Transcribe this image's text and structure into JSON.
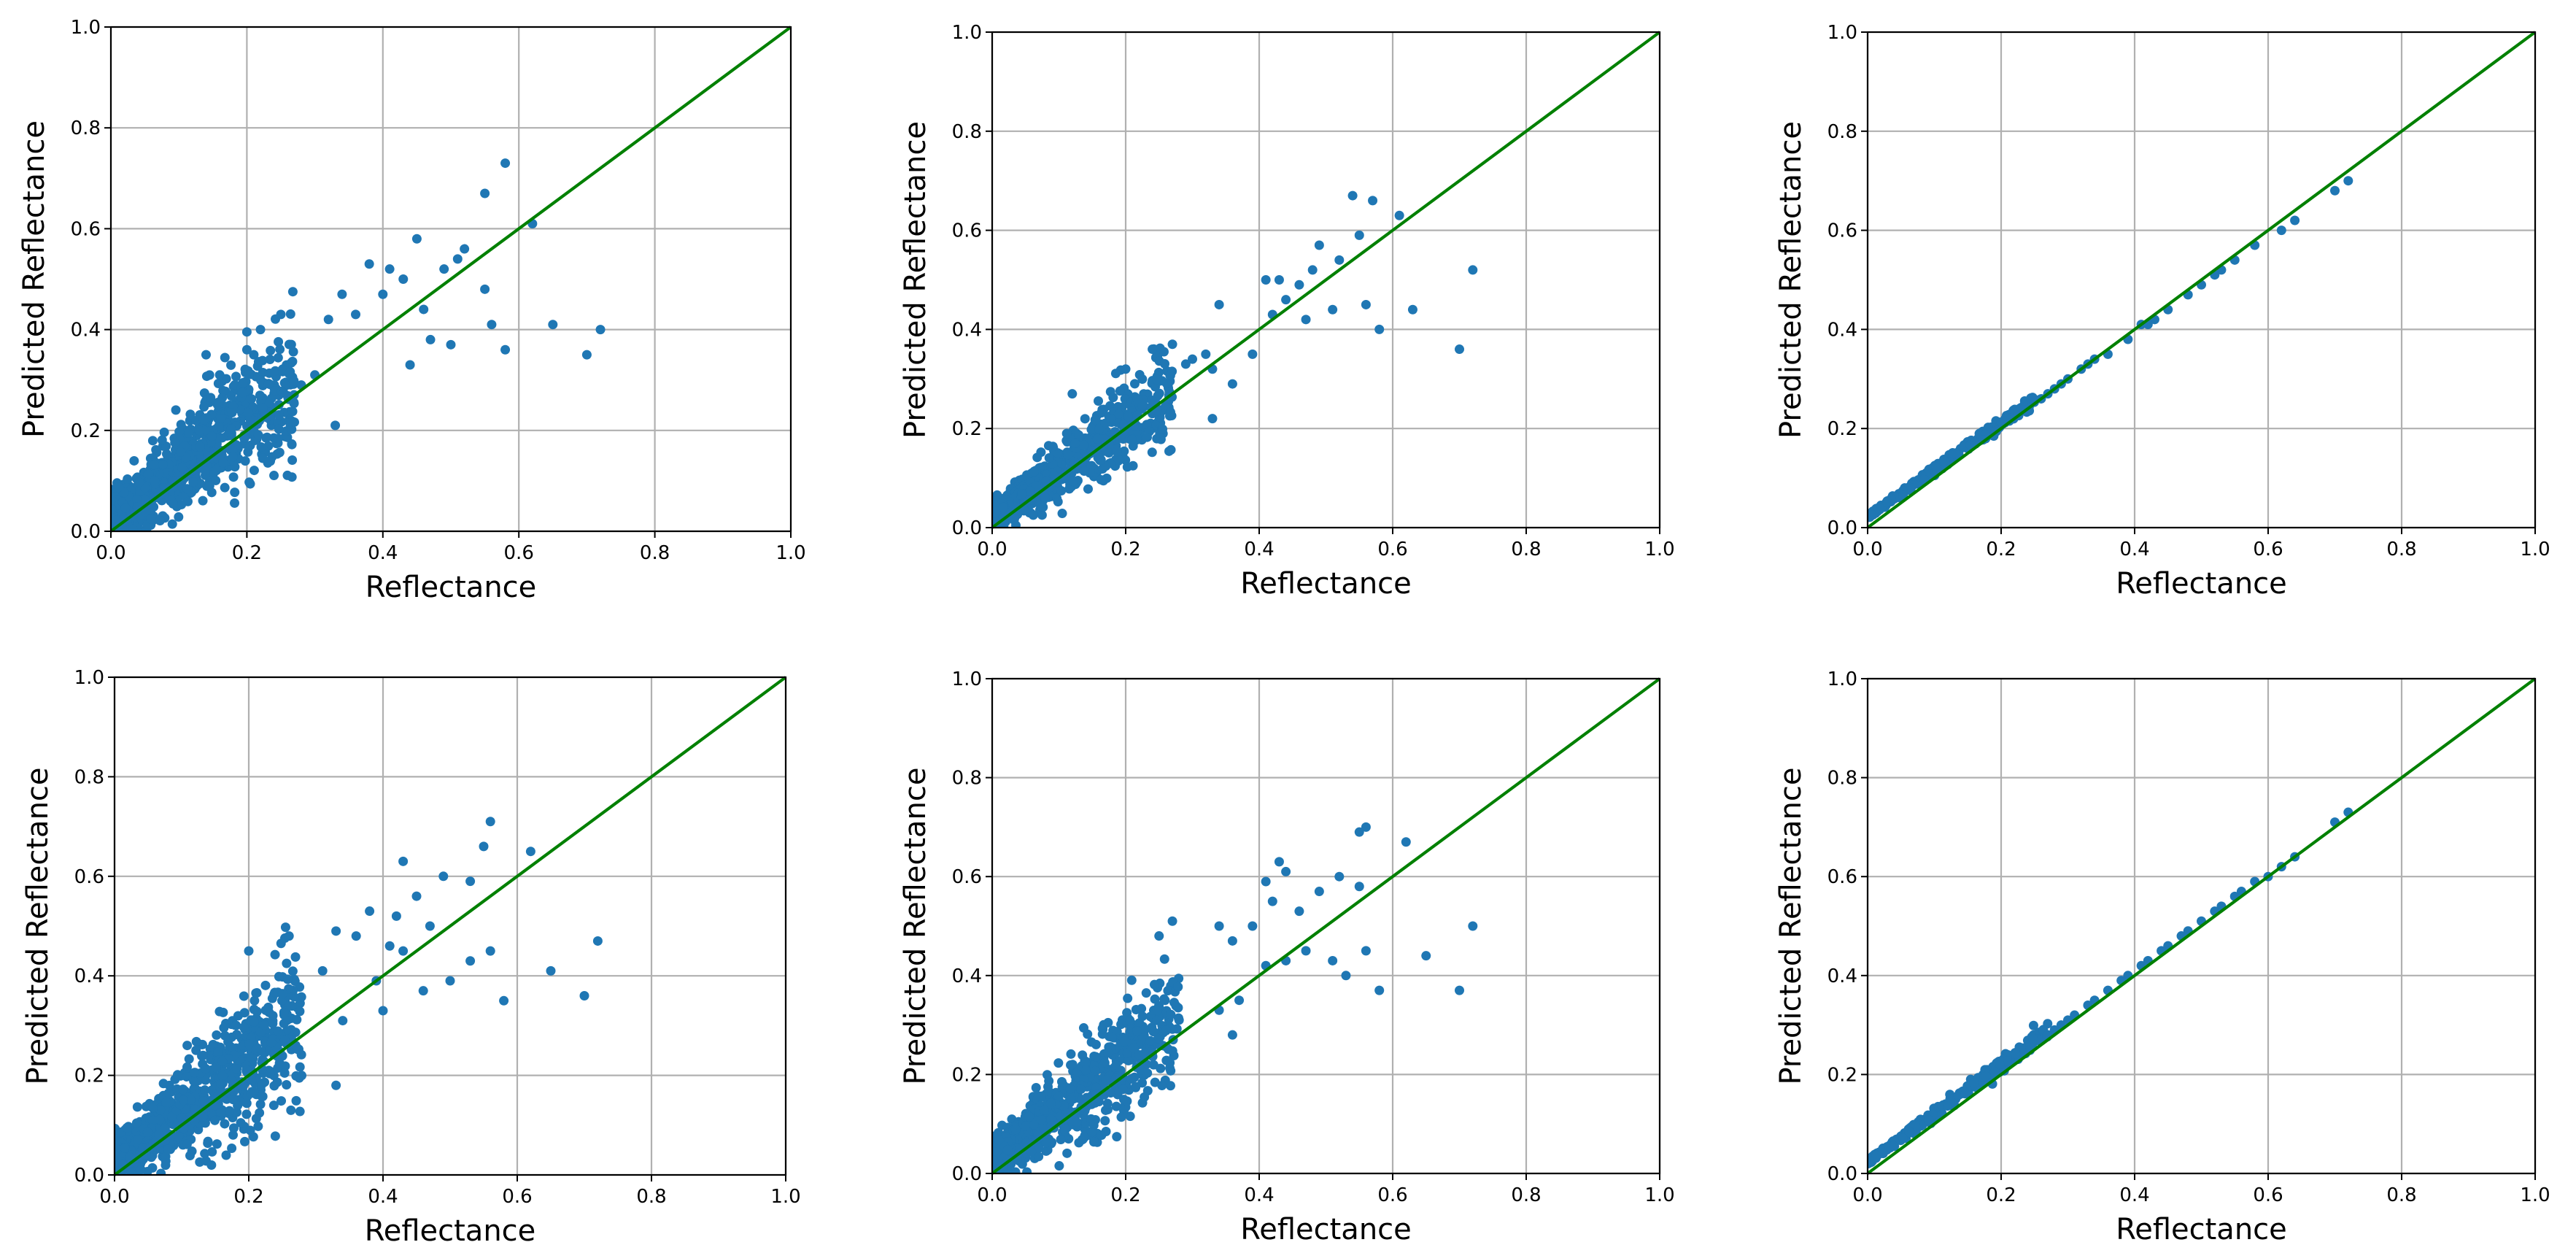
{
  "chart_data": [
    {
      "type": "scatter",
      "panel": "top-left",
      "xlabel": "Reflectance",
      "ylabel": "Predicted Reflectance",
      "xlim": [
        0.0,
        1.0
      ],
      "ylim": [
        0.0,
        1.0
      ],
      "xticks": [
        "0.0",
        "0.2",
        "0.4",
        "0.6",
        "0.8",
        "1.0"
      ],
      "yticks": [
        "0.0",
        "0.2",
        "0.4",
        "0.6",
        "0.8",
        "1.0"
      ],
      "grid": true,
      "reference_line": {
        "from": [
          0,
          0
        ],
        "to": [
          1,
          1
        ],
        "color": "#008000"
      },
      "marker_color": "#1f77b4",
      "cluster": {
        "x_range": [
          0.0,
          0.27
        ],
        "slope": 0.98,
        "intercept": 0.03,
        "spread": 0.045,
        "count": 900
      },
      "points": [
        [
          0.58,
          0.73
        ],
        [
          0.55,
          0.67
        ],
        [
          0.62,
          0.61
        ],
        [
          0.45,
          0.58
        ],
        [
          0.52,
          0.56
        ],
        [
          0.51,
          0.54
        ],
        [
          0.38,
          0.53
        ],
        [
          0.41,
          0.52
        ],
        [
          0.49,
          0.52
        ],
        [
          0.43,
          0.5
        ],
        [
          0.55,
          0.48
        ],
        [
          0.4,
          0.47
        ],
        [
          0.34,
          0.47
        ],
        [
          0.46,
          0.44
        ],
        [
          0.36,
          0.43
        ],
        [
          0.32,
          0.42
        ],
        [
          0.56,
          0.41
        ],
        [
          0.65,
          0.41
        ],
        [
          0.72,
          0.4
        ],
        [
          0.47,
          0.38
        ],
        [
          0.5,
          0.37
        ],
        [
          0.58,
          0.36
        ],
        [
          0.7,
          0.35
        ],
        [
          0.44,
          0.33
        ],
        [
          0.33,
          0.21
        ],
        [
          0.3,
          0.31
        ],
        [
          0.28,
          0.29
        ],
        [
          0.2,
          0.36
        ],
        [
          0.22,
          0.4
        ],
        [
          0.25,
          0.43
        ],
        [
          0.14,
          0.35
        ],
        [
          0.16,
          0.31
        ]
      ]
    },
    {
      "type": "scatter",
      "panel": "top-middle",
      "xlabel": "Reflectance",
      "ylabel": "Predicted Reflectance",
      "xlim": [
        0.0,
        1.0
      ],
      "ylim": [
        0.0,
        1.0
      ],
      "xticks": [
        "0.0",
        "0.2",
        "0.4",
        "0.6",
        "0.8",
        "1.0"
      ],
      "yticks": [
        "0.0",
        "0.2",
        "0.4",
        "0.6",
        "0.8",
        "1.0"
      ],
      "grid": true,
      "reference_line": {
        "from": [
          0,
          0
        ],
        "to": [
          1,
          1
        ],
        "color": "#008000"
      },
      "marker_color": "#1f77b4",
      "cluster": {
        "x_range": [
          0.0,
          0.27
        ],
        "slope": 0.95,
        "intercept": 0.02,
        "spread": 0.028,
        "count": 800
      },
      "points": [
        [
          0.54,
          0.67
        ],
        [
          0.57,
          0.66
        ],
        [
          0.61,
          0.63
        ],
        [
          0.55,
          0.59
        ],
        [
          0.49,
          0.57
        ],
        [
          0.52,
          0.54
        ],
        [
          0.48,
          0.52
        ],
        [
          0.41,
          0.5
        ],
        [
          0.43,
          0.5
        ],
        [
          0.46,
          0.49
        ],
        [
          0.44,
          0.46
        ],
        [
          0.34,
          0.45
        ],
        [
          0.56,
          0.45
        ],
        [
          0.63,
          0.44
        ],
        [
          0.72,
          0.52
        ],
        [
          0.51,
          0.44
        ],
        [
          0.42,
          0.43
        ],
        [
          0.47,
          0.42
        ],
        [
          0.58,
          0.4
        ],
        [
          0.7,
          0.36
        ],
        [
          0.39,
          0.35
        ],
        [
          0.32,
          0.35
        ],
        [
          0.3,
          0.34
        ],
        [
          0.36,
          0.29
        ],
        [
          0.33,
          0.32
        ],
        [
          0.29,
          0.33
        ],
        [
          0.27,
          0.37
        ],
        [
          0.2,
          0.32
        ],
        [
          0.12,
          0.27
        ],
        [
          0.24,
          0.36
        ],
        [
          0.33,
          0.22
        ]
      ]
    },
    {
      "type": "scatter",
      "panel": "top-right",
      "xlabel": "Reflectance",
      "ylabel": "Predicted Reflectance",
      "xlim": [
        0.0,
        1.0
      ],
      "ylim": [
        0.0,
        1.0
      ],
      "xticks": [
        "0.0",
        "0.2",
        "0.4",
        "0.6",
        "0.8",
        "1.0"
      ],
      "yticks": [
        "0.0",
        "0.2",
        "0.4",
        "0.6",
        "0.8",
        "1.0"
      ],
      "grid": true,
      "reference_line": {
        "from": [
          0,
          0
        ],
        "to": [
          1,
          1
        ],
        "color": "#008000"
      },
      "marker_color": "#1f77b4",
      "cluster": {
        "x_range": [
          0.0,
          0.25
        ],
        "slope": 0.95,
        "intercept": 0.022,
        "spread": 0.004,
        "count": 300
      },
      "points": [
        [
          0.72,
          0.7
        ],
        [
          0.7,
          0.68
        ],
        [
          0.64,
          0.62
        ],
        [
          0.62,
          0.6
        ],
        [
          0.58,
          0.57
        ],
        [
          0.55,
          0.54
        ],
        [
          0.53,
          0.52
        ],
        [
          0.52,
          0.51
        ],
        [
          0.5,
          0.49
        ],
        [
          0.48,
          0.47
        ],
        [
          0.45,
          0.44
        ],
        [
          0.43,
          0.42
        ],
        [
          0.42,
          0.41
        ],
        [
          0.41,
          0.41
        ],
        [
          0.39,
          0.38
        ],
        [
          0.36,
          0.35
        ],
        [
          0.34,
          0.34
        ],
        [
          0.33,
          0.33
        ],
        [
          0.32,
          0.32
        ],
        [
          0.3,
          0.3
        ],
        [
          0.29,
          0.29
        ],
        [
          0.28,
          0.28
        ],
        [
          0.27,
          0.27
        ],
        [
          0.26,
          0.26
        ]
      ]
    },
    {
      "type": "scatter",
      "panel": "bottom-left",
      "xlabel": "Reflectance",
      "ylabel": "Predicted Reflectance",
      "xlim": [
        0.0,
        1.0
      ],
      "ylim": [
        0.0,
        1.0
      ],
      "xticks": [
        "0.0",
        "0.2",
        "0.4",
        "0.6",
        "0.8",
        "1.0"
      ],
      "yticks": [
        "0.0",
        "0.2",
        "0.4",
        "0.6",
        "0.8",
        "1.0"
      ],
      "grid": true,
      "reference_line": {
        "from": [
          0,
          0
        ],
        "to": [
          1,
          1
        ],
        "color": "#008000"
      },
      "marker_color": "#1f77b4",
      "cluster": {
        "x_range": [
          0.0,
          0.28
        ],
        "slope": 1.0,
        "intercept": 0.03,
        "spread": 0.045,
        "count": 900
      },
      "points": [
        [
          0.56,
          0.71
        ],
        [
          0.55,
          0.66
        ],
        [
          0.62,
          0.65
        ],
        [
          0.43,
          0.63
        ],
        [
          0.49,
          0.6
        ],
        [
          0.53,
          0.59
        ],
        [
          0.45,
          0.56
        ],
        [
          0.38,
          0.53
        ],
        [
          0.42,
          0.52
        ],
        [
          0.47,
          0.5
        ],
        [
          0.33,
          0.49
        ],
        [
          0.36,
          0.48
        ],
        [
          0.41,
          0.46
        ],
        [
          0.56,
          0.45
        ],
        [
          0.72,
          0.47
        ],
        [
          0.43,
          0.45
        ],
        [
          0.53,
          0.43
        ],
        [
          0.65,
          0.41
        ],
        [
          0.31,
          0.41
        ],
        [
          0.39,
          0.39
        ],
        [
          0.5,
          0.39
        ],
        [
          0.46,
          0.37
        ],
        [
          0.58,
          0.35
        ],
        [
          0.7,
          0.36
        ],
        [
          0.4,
          0.33
        ],
        [
          0.34,
          0.31
        ],
        [
          0.27,
          0.26
        ],
        [
          0.33,
          0.18
        ],
        [
          0.2,
          0.45
        ],
        [
          0.26,
          0.48
        ]
      ]
    },
    {
      "type": "scatter",
      "panel": "bottom-middle",
      "xlabel": "Reflectance",
      "ylabel": "Predicted Reflectance",
      "xlim": [
        0.0,
        1.0
      ],
      "ylim": [
        0.0,
        1.0
      ],
      "xticks": [
        "0.0",
        "0.2",
        "0.4",
        "0.6",
        "0.8",
        "1.0"
      ],
      "yticks": [
        "0.0",
        "0.2",
        "0.4",
        "0.6",
        "0.8",
        "1.0"
      ],
      "grid": true,
      "reference_line": {
        "from": [
          0,
          0
        ],
        "to": [
          1,
          1
        ],
        "color": "#008000"
      },
      "marker_color": "#1f77b4",
      "cluster": {
        "x_range": [
          0.0,
          0.28
        ],
        "slope": 1.02,
        "intercept": 0.025,
        "spread": 0.04,
        "count": 850
      },
      "points": [
        [
          0.56,
          0.7
        ],
        [
          0.55,
          0.69
        ],
        [
          0.62,
          0.67
        ],
        [
          0.43,
          0.63
        ],
        [
          0.44,
          0.61
        ],
        [
          0.52,
          0.6
        ],
        [
          0.41,
          0.59
        ],
        [
          0.55,
          0.58
        ],
        [
          0.49,
          0.57
        ],
        [
          0.42,
          0.55
        ],
        [
          0.46,
          0.53
        ],
        [
          0.39,
          0.5
        ],
        [
          0.34,
          0.5
        ],
        [
          0.36,
          0.47
        ],
        [
          0.72,
          0.5
        ],
        [
          0.47,
          0.45
        ],
        [
          0.56,
          0.45
        ],
        [
          0.65,
          0.44
        ],
        [
          0.44,
          0.43
        ],
        [
          0.51,
          0.43
        ],
        [
          0.41,
          0.42
        ],
        [
          0.53,
          0.4
        ],
        [
          0.58,
          0.37
        ],
        [
          0.7,
          0.37
        ],
        [
          0.37,
          0.35
        ],
        [
          0.34,
          0.33
        ],
        [
          0.28,
          0.31
        ],
        [
          0.36,
          0.28
        ],
        [
          0.25,
          0.48
        ],
        [
          0.27,
          0.51
        ]
      ]
    },
    {
      "type": "scatter",
      "panel": "bottom-right",
      "xlabel": "Reflectance",
      "ylabel": "Predicted Reflectance",
      "xlim": [
        0.0,
        1.0
      ],
      "ylim": [
        0.0,
        1.0
      ],
      "xticks": [
        "0.0",
        "0.2",
        "0.4",
        "0.6",
        "0.8",
        "1.0"
      ],
      "yticks": [
        "0.0",
        "0.2",
        "0.4",
        "0.6",
        "0.8",
        "1.0"
      ],
      "grid": true,
      "reference_line": {
        "from": [
          0,
          0
        ],
        "to": [
          1,
          1
        ],
        "color": "#008000"
      },
      "marker_color": "#1f77b4",
      "cluster": {
        "x_range": [
          0.0,
          0.27
        ],
        "slope": 0.98,
        "intercept": 0.023,
        "spread": 0.005,
        "count": 350
      },
      "points": [
        [
          0.72,
          0.73
        ],
        [
          0.7,
          0.71
        ],
        [
          0.64,
          0.64
        ],
        [
          0.62,
          0.62
        ],
        [
          0.6,
          0.6
        ],
        [
          0.58,
          0.59
        ],
        [
          0.56,
          0.57
        ],
        [
          0.55,
          0.56
        ],
        [
          0.53,
          0.54
        ],
        [
          0.52,
          0.53
        ],
        [
          0.5,
          0.51
        ],
        [
          0.48,
          0.49
        ],
        [
          0.47,
          0.48
        ],
        [
          0.45,
          0.46
        ],
        [
          0.44,
          0.45
        ],
        [
          0.42,
          0.43
        ],
        [
          0.41,
          0.42
        ],
        [
          0.39,
          0.4
        ],
        [
          0.38,
          0.39
        ],
        [
          0.36,
          0.37
        ],
        [
          0.34,
          0.35
        ],
        [
          0.33,
          0.34
        ],
        [
          0.31,
          0.32
        ],
        [
          0.3,
          0.31
        ],
        [
          0.29,
          0.3
        ],
        [
          0.28,
          0.29
        ],
        [
          0.27,
          0.28
        ]
      ]
    }
  ]
}
